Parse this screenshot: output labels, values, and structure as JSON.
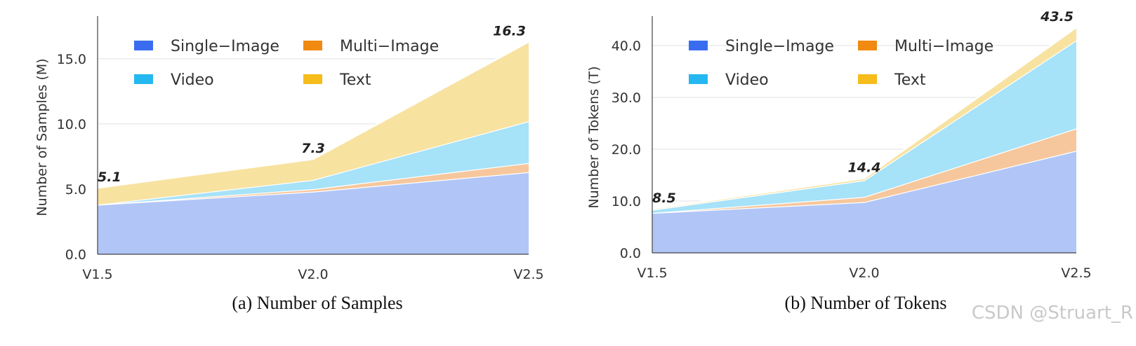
{
  "chart_data": [
    {
      "type": "area",
      "stacked": true,
      "categories": [
        "V1.5",
        "V2.0",
        "V2.5"
      ],
      "ylabel": "Number of Samples (M)",
      "ylim": [
        0,
        18
      ],
      "yticks": [
        "0.0",
        "5.0",
        "10.0",
        "15.0"
      ],
      "ytick_values": [
        0,
        5,
        10,
        15
      ],
      "grid": true,
      "legend_position": "top-left",
      "series": [
        {
          "name": "Single−Image",
          "values": [
            3.8,
            4.8,
            6.3
          ]
        },
        {
          "name": "Multi−Image",
          "values": [
            0,
            0.2,
            0.7
          ]
        },
        {
          "name": "Video",
          "values": [
            0,
            0.7,
            3.2
          ]
        },
        {
          "name": "Text",
          "values": [
            1.3,
            1.6,
            6.1
          ]
        }
      ],
      "totals": [
        5.1,
        7.3,
        16.3
      ],
      "total_labels": [
        "5.1",
        "7.3",
        "16.3"
      ],
      "caption": "(a) Number of Samples"
    },
    {
      "type": "area",
      "stacked": true,
      "categories": [
        "V1.5",
        "V2.0",
        "V2.5"
      ],
      "ylabel": "Number of Tokens (T)",
      "ylim": [
        0,
        45
      ],
      "yticks": [
        "0.0",
        "10.0",
        "20.0",
        "30.0",
        "40.0"
      ],
      "ytick_values": [
        0,
        10,
        20,
        30,
        40
      ],
      "grid": true,
      "legend_position": "top-left",
      "series": [
        {
          "name": "Single−Image",
          "values": [
            7.7,
            9.8,
            19.7
          ]
        },
        {
          "name": "Multi−Image",
          "values": [
            0,
            1.0,
            4.3
          ]
        },
        {
          "name": "Video",
          "values": [
            0.6,
            3.2,
            17.0
          ]
        },
        {
          "name": "Text",
          "values": [
            0.2,
            0.4,
            2.5
          ]
        }
      ],
      "totals": [
        8.5,
        14.4,
        43.5
      ],
      "total_labels": [
        "8.5",
        "14.4",
        "43.5"
      ],
      "caption": "(b) Number of Tokens"
    }
  ],
  "colors": {
    "single_image": "#3a6cf0",
    "multi_image": "#f08a10",
    "video": "#25b8f0",
    "text": "#f5bc1c",
    "single_image_fill": "#b1c6f7",
    "multi_image_fill": "#f6c79c",
    "video_fill": "#a6e2f8",
    "text_fill": "#f7e2a0"
  },
  "watermark": "CSDN @Struart_R"
}
